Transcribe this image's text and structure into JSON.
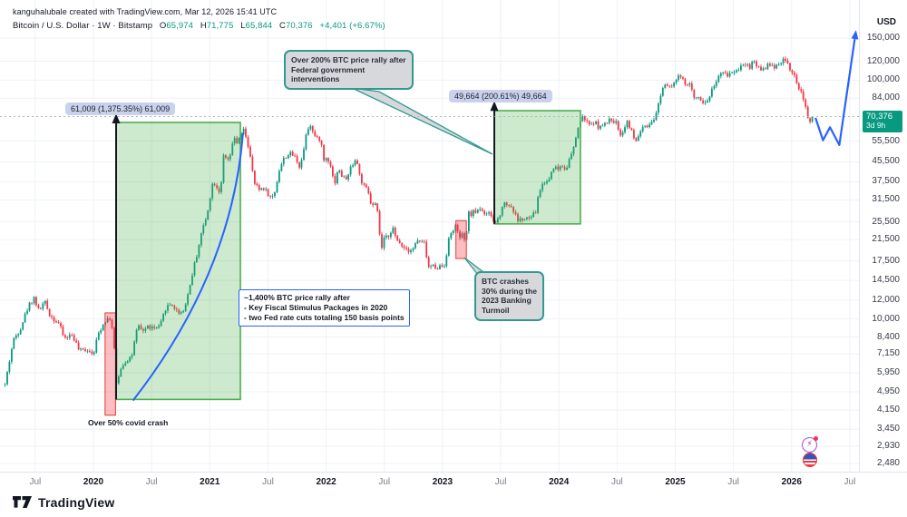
{
  "header": {
    "attribution": "kanguhalubale created with TradingView.com, Mar 12, 2026 15:41 UTC",
    "symbol_line": "Bitcoin / U.S. Dollar · 1W · Bitstamp",
    "ohlc": [
      {
        "label": "O",
        "value": "65,974"
      },
      {
        "label": "H",
        "value": "71,775"
      },
      {
        "label": "L",
        "value": "65,844"
      },
      {
        "label": "C",
        "value": "70,376"
      }
    ],
    "change": "+4,401 (+6.67%)"
  },
  "price_axis": {
    "currency": "USD",
    "ticks": [
      "150,000",
      "120,000",
      "100,000",
      "84,000",
      "55,500",
      "45,500",
      "37,500",
      "31,500",
      "25,500",
      "21,500",
      "17,500",
      "14,500",
      "12,000",
      "10,000",
      "8,400",
      "7,150",
      "5,950",
      "4,950",
      "4,150",
      "3,450",
      "2,930",
      "2,480"
    ],
    "tick_values": [
      150000,
      120000,
      100000,
      84000,
      55500,
      45500,
      37500,
      31500,
      25500,
      21500,
      17500,
      14500,
      12000,
      10000,
      8400,
      7150,
      5950,
      4950,
      4150,
      3450,
      2930,
      2480
    ],
    "last_price": "70,376",
    "last_price_value": 70376,
    "countdown": "3d 9h",
    "badge_color": "#089981"
  },
  "time_axis": {
    "ticks": [
      {
        "label": "Jul",
        "year": 2019.5
      },
      {
        "label": "2020",
        "year": 2020
      },
      {
        "label": "Jul",
        "year": 2020.5
      },
      {
        "label": "2021",
        "year": 2021
      },
      {
        "label": "Jul",
        "year": 2021.5
      },
      {
        "label": "2022",
        "year": 2022
      },
      {
        "label": "Jul",
        "year": 2022.5
      },
      {
        "label": "2023",
        "year": 2023
      },
      {
        "label": "Jul",
        "year": 2023.5
      },
      {
        "label": "2024",
        "year": 2024
      },
      {
        "label": "Jul",
        "year": 2024.5
      },
      {
        "label": "2025",
        "year": 2025
      },
      {
        "label": "Jul",
        "year": 2025.5
      },
      {
        "label": "2026",
        "year": 2026
      },
      {
        "label": "Jul",
        "year": 2026.5
      }
    ]
  },
  "annotations": {
    "measure1": {
      "text": "61,009 (1,375.35%) 61,009"
    },
    "measure2": {
      "text": "49,664 (200.61%) 49,664"
    },
    "callout1": {
      "lines": [
        "Over 200% BTC price rally after",
        "Federal government",
        "interventions"
      ],
      "target": [
        2023.43,
        48500
      ]
    },
    "callout2": {
      "lines": [
        "BTC crashes",
        "30% during the",
        "2023 Banking",
        "Turmoil"
      ],
      "target": [
        2023.19,
        18000
      ]
    },
    "textbox": {
      "lines": [
        "~1,400% BTC price rally after",
        "- Key Fiscal Stimulus Packages in 2020",
        "- two Fed rate cuts totaling 150 basis points"
      ]
    },
    "covid_label": {
      "text": "Over 50% covid crash"
    }
  },
  "footer": {
    "logo_text": "TradingView"
  },
  "icons": [
    "spark-sticker-icon",
    "flag-sticker-icon"
  ],
  "colors": {
    "up": "#089981",
    "down": "#f23645",
    "grid": "#eef1f7",
    "green_box_border": "#4caf50",
    "green_box_fill": "rgba(76,175,80,0.28)",
    "red_box_border": "#e53935",
    "red_box_fill": "rgba(242,54,69,0.32)",
    "blue": "#2962ff",
    "teal_callout": "#339990",
    "callout_fill": "#d6d8db",
    "price_line": "#b2b5be",
    "badge": "#089981"
  },
  "chart_data": {
    "type": "candlestick",
    "title": "Bitcoin / U.S. Dollar, 1 Week, Bitstamp",
    "scale": "log",
    "x_range_years": [
      2019.2,
      2026.55
    ],
    "y_domain": [
      2480,
      150000
    ],
    "grid": true,
    "start_year": 2019.24,
    "end_year": 2026.19,
    "weeks_per_year": 52.18,
    "noise_seed": 42,
    "noise": 0.05,
    "last_close": 70376,
    "anchors": [
      [
        2019.24,
        5300
      ],
      [
        2019.31,
        8100
      ],
      [
        2019.37,
        9100
      ],
      [
        2019.44,
        11300
      ],
      [
        2019.49,
        12300
      ],
      [
        2019.53,
        10800
      ],
      [
        2019.58,
        11800
      ],
      [
        2019.63,
        10300
      ],
      [
        2019.7,
        9600
      ],
      [
        2019.75,
        8300
      ],
      [
        2019.82,
        8600
      ],
      [
        2019.88,
        7300
      ],
      [
        2019.94,
        7500
      ],
      [
        2020.0,
        7200
      ],
      [
        2020.05,
        8900
      ],
      [
        2020.1,
        9900
      ],
      [
        2020.14,
        10100
      ],
      [
        2020.17,
        8800
      ],
      [
        2020.2,
        5100
      ],
      [
        2020.23,
        6200
      ],
      [
        2020.28,
        6700
      ],
      [
        2020.33,
        7000
      ],
      [
        2020.38,
        9300
      ],
      [
        2020.42,
        8900
      ],
      [
        2020.47,
        9300
      ],
      [
        2020.52,
        9100
      ],
      [
        2020.57,
        9200
      ],
      [
        2020.62,
        11100
      ],
      [
        2020.67,
        11600
      ],
      [
        2020.72,
        10700
      ],
      [
        2020.77,
        10700
      ],
      [
        2020.82,
        13100
      ],
      [
        2020.85,
        15500
      ],
      [
        2020.89,
        18700
      ],
      [
        2020.93,
        23200
      ],
      [
        2020.97,
        26400
      ],
      [
        2021.0,
        32100
      ],
      [
        2021.03,
        38100
      ],
      [
        2021.06,
        35700
      ],
      [
        2021.09,
        33900
      ],
      [
        2021.12,
        48500
      ],
      [
        2021.15,
        45200
      ],
      [
        2021.18,
        49100
      ],
      [
        2021.21,
        57300
      ],
      [
        2021.24,
        54100
      ],
      [
        2021.27,
        59000
      ],
      [
        2021.295,
        62000
      ],
      [
        2021.32,
        56200
      ],
      [
        2021.35,
        46700
      ],
      [
        2021.38,
        37300
      ],
      [
        2021.42,
        34700
      ],
      [
        2021.46,
        35600
      ],
      [
        2021.5,
        33500
      ],
      [
        2021.53,
        31600
      ],
      [
        2021.56,
        34300
      ],
      [
        2021.6,
        42800
      ],
      [
        2021.64,
        47100
      ],
      [
        2021.67,
        48900
      ],
      [
        2021.71,
        48800
      ],
      [
        2021.74,
        47100
      ],
      [
        2021.77,
        43800
      ],
      [
        2021.8,
        48200
      ],
      [
        2021.83,
        61500
      ],
      [
        2021.865,
        65500
      ],
      [
        2021.89,
        59700
      ],
      [
        2021.92,
        56300
      ],
      [
        2021.95,
        57300
      ],
      [
        2021.98,
        46200
      ],
      [
        2022.01,
        47700
      ],
      [
        2022.04,
        43900
      ],
      [
        2022.07,
        36400
      ],
      [
        2022.1,
        42400
      ],
      [
        2022.13,
        40100
      ],
      [
        2022.16,
        38400
      ],
      [
        2022.19,
        39700
      ],
      [
        2022.22,
        44500
      ],
      [
        2022.26,
        46800
      ],
      [
        2022.29,
        39400
      ],
      [
        2022.32,
        36000
      ],
      [
        2022.36,
        34100
      ],
      [
        2022.39,
        29400
      ],
      [
        2022.42,
        30100
      ],
      [
        2022.45,
        26700
      ],
      [
        2022.47,
        19000
      ],
      [
        2022.5,
        21600
      ],
      [
        2022.54,
        22500
      ],
      [
        2022.57,
        24400
      ],
      [
        2022.6,
        21300
      ],
      [
        2022.64,
        20800
      ],
      [
        2022.67,
        20000
      ],
      [
        2022.71,
        19500
      ],
      [
        2022.75,
        19800
      ],
      [
        2022.78,
        21300
      ],
      [
        2022.82,
        20900
      ],
      [
        2022.85,
        20600
      ],
      [
        2022.875,
        16300
      ],
      [
        2022.91,
        16700
      ],
      [
        2022.95,
        16500
      ],
      [
        2022.99,
        16600
      ],
      [
        2023.02,
        16950
      ],
      [
        2023.05,
        21100
      ],
      [
        2023.08,
        23300
      ],
      [
        2023.11,
        24600
      ],
      [
        2023.14,
        21900
      ],
      [
        2023.17,
        22400
      ],
      [
        2023.195,
        20500
      ],
      [
        2023.22,
        27400
      ],
      [
        2023.26,
        27800
      ],
      [
        2023.3,
        28500
      ],
      [
        2023.33,
        29400
      ],
      [
        2023.37,
        26900
      ],
      [
        2023.41,
        27600
      ],
      [
        2023.445,
        25000
      ],
      [
        2023.48,
        26300
      ],
      [
        2023.52,
        30500
      ],
      [
        2023.56,
        30300
      ],
      [
        2023.6,
        29200
      ],
      [
        2023.64,
        26100
      ],
      [
        2023.68,
        26000
      ],
      [
        2023.72,
        26100
      ],
      [
        2023.76,
        26600
      ],
      [
        2023.8,
        28000
      ],
      [
        2023.83,
        34200
      ],
      [
        2023.87,
        37400
      ],
      [
        2023.91,
        37800
      ],
      [
        2023.95,
        43700
      ],
      [
        2023.99,
        42300
      ],
      [
        2024.02,
        44200
      ],
      [
        2024.06,
        42600
      ],
      [
        2024.1,
        47700
      ],
      [
        2024.13,
        52100
      ],
      [
        2024.16,
        62500
      ],
      [
        2024.19,
        68500
      ],
      [
        2024.22,
        69600
      ],
      [
        2024.26,
        64000
      ],
      [
        2024.3,
        67200
      ],
      [
        2024.34,
        64000
      ],
      [
        2024.38,
        63900
      ],
      [
        2024.42,
        67000
      ],
      [
        2024.46,
        69000
      ],
      [
        2024.5,
        64900
      ],
      [
        2024.54,
        58200
      ],
      [
        2024.58,
        68200
      ],
      [
        2024.62,
        61500
      ],
      [
        2024.655,
        54900
      ],
      [
        2024.69,
        59400
      ],
      [
        2024.73,
        63600
      ],
      [
        2024.77,
        62900
      ],
      [
        2024.81,
        66600
      ],
      [
        2024.85,
        76700
      ],
      [
        2024.88,
        90600
      ],
      [
        2024.92,
        97700
      ],
      [
        2024.96,
        95200
      ],
      [
        2025.0,
        98600
      ],
      [
        2025.04,
        104500
      ],
      [
        2025.08,
        96100
      ],
      [
        2025.12,
        96600
      ],
      [
        2025.16,
        84300
      ],
      [
        2025.2,
        86800
      ],
      [
        2025.25,
        78900
      ],
      [
        2025.29,
        85100
      ],
      [
        2025.33,
        94700
      ],
      [
        2025.37,
        103200
      ],
      [
        2025.41,
        106100
      ],
      [
        2025.45,
        105600
      ],
      [
        2025.49,
        108200
      ],
      [
        2025.53,
        109700
      ],
      [
        2025.57,
        117400
      ],
      [
        2025.61,
        117300
      ],
      [
        2025.64,
        113200
      ],
      [
        2025.67,
        121800
      ],
      [
        2025.71,
        113500
      ],
      [
        2025.75,
        111000
      ],
      [
        2025.79,
        115800
      ],
      [
        2025.83,
        113500
      ],
      [
        2025.87,
        116000
      ],
      [
        2025.91,
        120000
      ],
      [
        2025.94,
        122500
      ],
      [
        2025.97,
        116000
      ],
      [
        2026.0,
        108000
      ],
      [
        2026.04,
        99000
      ],
      [
        2026.08,
        88000
      ],
      [
        2026.12,
        76000
      ],
      [
        2026.15,
        66500
      ],
      [
        2026.19,
        70376
      ]
    ],
    "shapes": {
      "green_boxes": [
        {
          "x1": 2020.195,
          "p1": 4600,
          "x2": 2021.263,
          "p2": 66500
        },
        {
          "x1": 2023.445,
          "p1": 25000,
          "x2": 2024.185,
          "p2": 74500
        }
      ],
      "red_boxes": [
        {
          "x1": 2020.1,
          "p1": 3950,
          "x2": 2020.19,
          "p2": 10600
        },
        {
          "x1": 2023.115,
          "p1": 17900,
          "x2": 2023.205,
          "p2": 25800
        }
      ],
      "black_arrows": [
        {
          "x": 2020.195,
          "p1": 4600,
          "p2": 70500
        },
        {
          "x": 2023.445,
          "p1": 25000,
          "p2": 79500
        }
      ],
      "rally_curve": {
        "x1": 2020.34,
        "p1": 4550,
        "cx": 2021.19,
        "cp": 15500,
        "x2": 2021.285,
        "p2": 60000
      },
      "projection_points": [
        [
          2026.205,
          69500
        ],
        [
          2026.27,
          56000
        ],
        [
          2026.33,
          63500
        ],
        [
          2026.41,
          53500
        ],
        [
          2026.55,
          158000
        ]
      ],
      "price_line_value": 70376
    }
  }
}
